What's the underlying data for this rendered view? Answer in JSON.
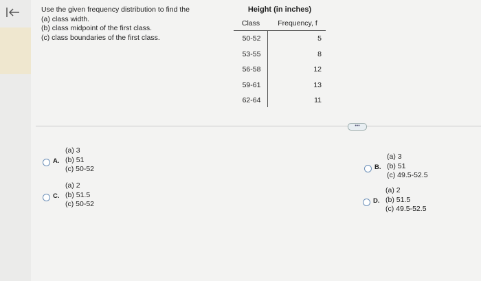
{
  "question": {
    "lines": [
      "Use the given frequency distribution to find the",
      "(a) class width.",
      "(b) class midpoint of the first class.",
      "(c) class boundaries of the first class."
    ]
  },
  "table": {
    "title": "Height (in inches)",
    "headers": [
      "Class",
      "Frequency, f"
    ],
    "rows": [
      [
        "50-52",
        5
      ],
      [
        "53-55",
        8
      ],
      [
        "56-58",
        12
      ],
      [
        "59-61",
        13
      ],
      [
        "62-64",
        11
      ]
    ]
  },
  "options": [
    {
      "letter": "A.",
      "lines": [
        "(a) 3",
        "(b) 51",
        "(c) 50-52"
      ]
    },
    {
      "letter": "B.",
      "lines": [
        "(a) 3",
        "(b) 51",
        "(c) 49.5-52.5"
      ]
    },
    {
      "letter": "C.",
      "lines": [
        "(a) 2",
        "(b) 51.5",
        "(c) 50-52"
      ]
    },
    {
      "letter": "D.",
      "lines": [
        "(a) 2",
        "(b) 51.5",
        "(c) 49.5-52.5"
      ]
    }
  ]
}
